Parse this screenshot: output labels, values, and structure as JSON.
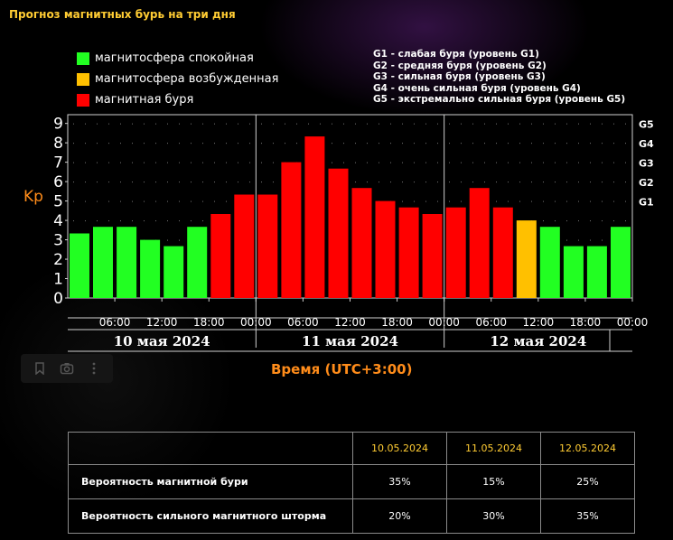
{
  "page_title": "Прогноз магнитных бурь на три дня",
  "legend": [
    {
      "label": "магнитосфера спокойная",
      "color": "#22ff22"
    },
    {
      "label": "магнитосфера возбужденная",
      "color": "#ffc000"
    },
    {
      "label": "магнитная буря",
      "color": "#ff0000"
    }
  ],
  "g_legend": [
    "G1 - слабая буря (уровень G1)",
    "G2 - средняя буря (уровень G2)",
    "G3 - сильная буря (уровень G3)",
    "G4 - очень сильная буря (уровень G4)",
    "G5 - экстремально сильная буря (уровень G5)"
  ],
  "colors": {
    "quiet": "#22ff22",
    "active": "#ffc000",
    "storm": "#ff0000",
    "axis_label": "#ff8c1a",
    "title": "#ffcc33"
  },
  "chart_data": {
    "type": "bar",
    "ylabel": "Kp",
    "xlabel": "Время (UTC+3:00)",
    "ylim": [
      0,
      9
    ],
    "y_ticks": [
      "0",
      "1",
      "2",
      "3",
      "4",
      "5",
      "6",
      "7",
      "8",
      "9"
    ],
    "right_ticks": [
      {
        "label": "G1",
        "value": 5
      },
      {
        "label": "G2",
        "value": 6
      },
      {
        "label": "G3",
        "value": 7
      },
      {
        "label": "G4",
        "value": 8
      },
      {
        "label": "G5",
        "value": 9
      }
    ],
    "time_labels": [
      "06:00",
      "12:00",
      "18:00",
      "00:00",
      "06:00",
      "12:00",
      "18:00",
      "00:00",
      "06:00",
      "12:00",
      "18:00",
      "00:00"
    ],
    "days": [
      "10 мая 2024",
      "11 мая 2024",
      "12 мая 2024"
    ],
    "values": [
      3.33,
      3.67,
      3.67,
      3.0,
      2.67,
      3.67,
      4.33,
      5.33,
      5.33,
      7.0,
      8.33,
      6.67,
      5.67,
      5.0,
      4.67,
      4.33,
      4.67,
      5.67,
      4.67,
      4.0,
      3.67,
      2.67,
      2.67,
      3.67
    ],
    "levels": [
      "quiet",
      "quiet",
      "quiet",
      "quiet",
      "quiet",
      "quiet",
      "storm",
      "storm",
      "storm",
      "storm",
      "storm",
      "storm",
      "storm",
      "storm",
      "storm",
      "storm",
      "storm",
      "storm",
      "storm",
      "active",
      "quiet",
      "quiet",
      "quiet",
      "quiet"
    ],
    "grid": true
  },
  "table": {
    "dates": [
      "10.05.2024",
      "11.05.2024",
      "12.05.2024"
    ],
    "rows": [
      {
        "label": "Вероятность магнитной бури",
        "values": [
          "35%",
          "15%",
          "25%"
        ]
      },
      {
        "label": "Вероятность сильного магнитного шторма",
        "values": [
          "20%",
          "30%",
          "35%"
        ]
      }
    ]
  }
}
